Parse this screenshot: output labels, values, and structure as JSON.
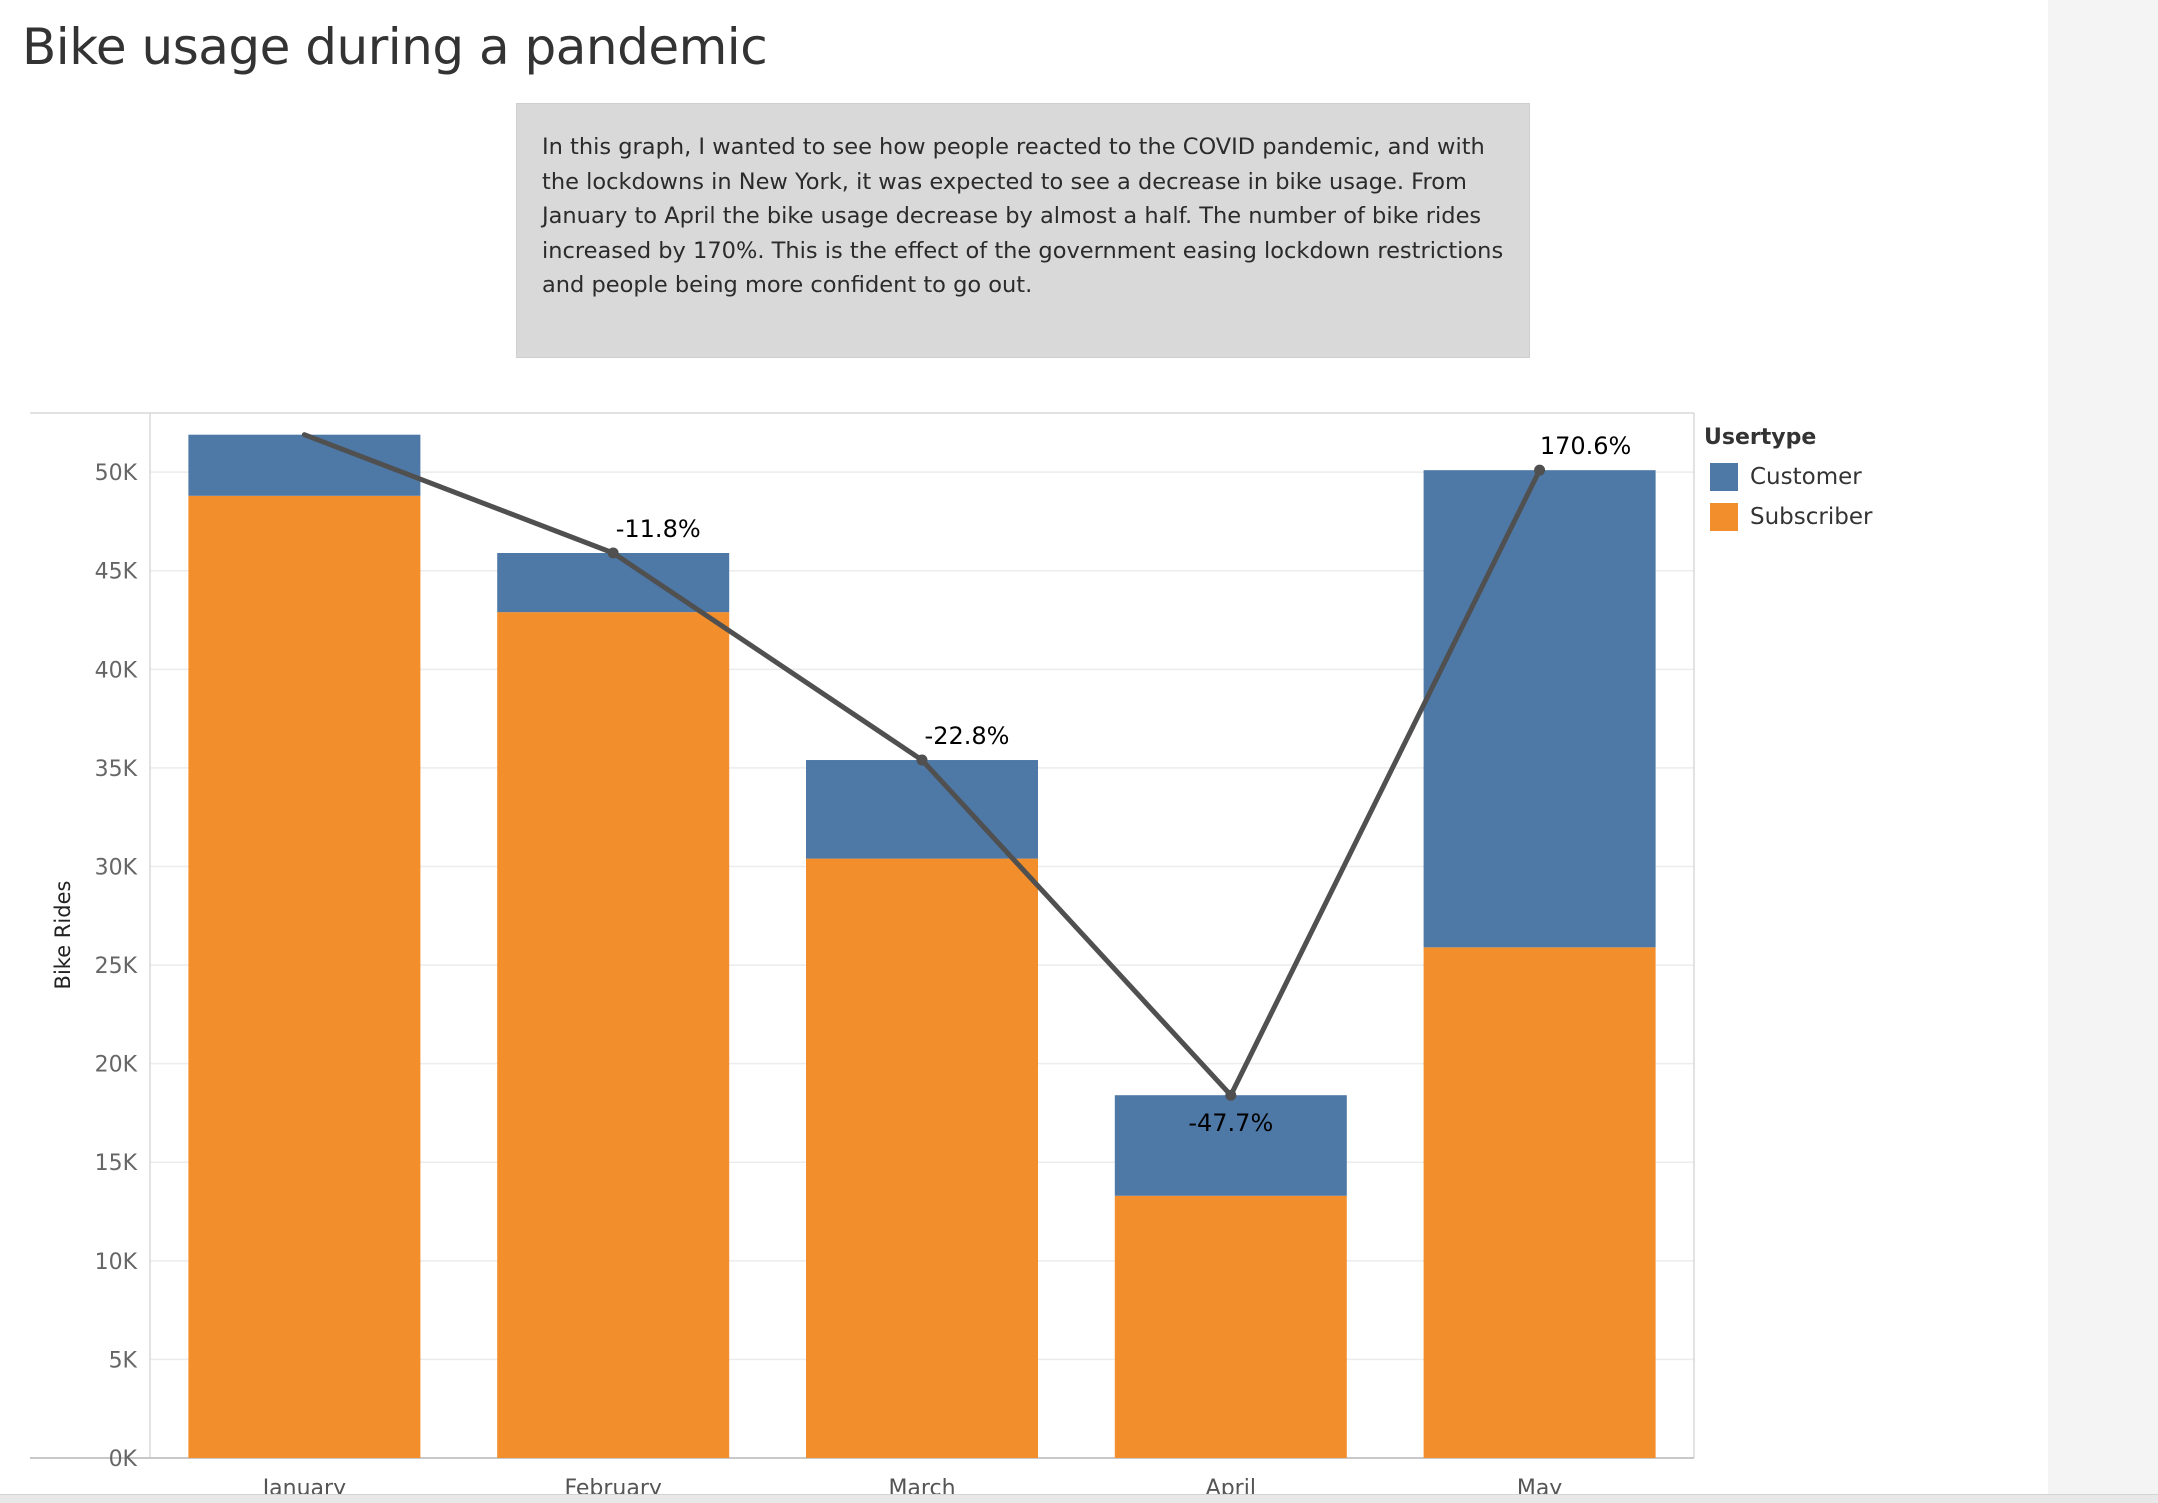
{
  "title": "Bike usage during a pandemic",
  "annotation": "In this graph, I wanted to see how people reacted to the COVID pandemic, and with the lockdowns in New York, it was expected to see a decrease in bike usage. From January to April the bike usage decrease by almost a half. The number of bike rides increased by 170%. This is the effect of the government easing lockdown restrictions and people being more confident to go out.",
  "legend": {
    "title": "Usertype",
    "items": [
      {
        "label": "Customer",
        "color": "#4e79a7"
      },
      {
        "label": "Subscriber",
        "color": "#f28e2b"
      }
    ]
  },
  "chart_data": {
    "type": "bar",
    "stacked": true,
    "ylabel": "Bike Rides",
    "xlabel": "",
    "ylim": [
      0,
      53000
    ],
    "yticks": [
      0,
      5000,
      10000,
      15000,
      20000,
      25000,
      30000,
      35000,
      40000,
      45000,
      50000
    ],
    "ytick_labels": [
      "0K",
      "5K",
      "10K",
      "15K",
      "20K",
      "25K",
      "30K",
      "35K",
      "40K",
      "45K",
      "50K"
    ],
    "categories": [
      "January",
      "February",
      "March",
      "April",
      "May"
    ],
    "series": [
      {
        "name": "Subscriber",
        "color": "#f28e2b",
        "values": [
          48800,
          42900,
          30400,
          13300,
          25900
        ]
      },
      {
        "name": "Customer",
        "color": "#4e79a7",
        "values": [
          3100,
          3000,
          5000,
          5100,
          24200
        ]
      }
    ],
    "line": {
      "color": "#505050",
      "values": [
        51900,
        45900,
        35400,
        18400,
        50100
      ],
      "labels": [
        "",
        "-11.8%",
        "-22.8%",
        "-47.7%",
        "170.6%"
      ]
    },
    "grid": true,
    "legend_position": "right"
  }
}
